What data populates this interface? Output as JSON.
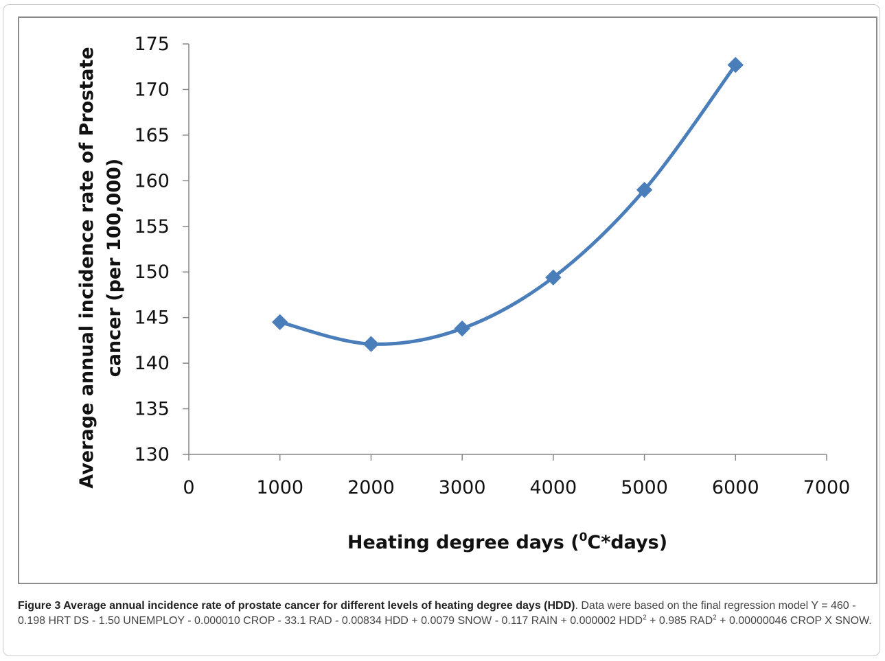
{
  "chart_data": {
    "type": "line",
    "title": "",
    "xlabel_prefix": "Heating degree days (",
    "xlabel_sup": "0",
    "xlabel_suffix": "C*days)",
    "ylabel_line1": "Average annual incidence rate of Prostate",
    "ylabel_line2": "cancer (per 100,000)",
    "xlim": [
      0,
      7000
    ],
    "ylim": [
      130,
      175
    ],
    "x_ticks": [
      "0",
      "1000",
      "2000",
      "3000",
      "4000",
      "5000",
      "6000",
      "7000"
    ],
    "y_ticks": [
      "130",
      "135",
      "140",
      "145",
      "150",
      "155",
      "160",
      "165",
      "170",
      "175"
    ],
    "x_tick_values": [
      0,
      1000,
      2000,
      3000,
      4000,
      5000,
      6000,
      7000
    ],
    "y_tick_values": [
      130,
      135,
      140,
      145,
      150,
      155,
      160,
      165,
      170,
      175
    ],
    "grid": false,
    "legend": "none",
    "marker": "diamond",
    "series_color": "#4a7ebb",
    "x": [
      1000,
      2000,
      3000,
      4000,
      5000,
      6000
    ],
    "series": [
      {
        "values": [
          144.5,
          142.1,
          143.8,
          149.4,
          159.0,
          172.7
        ]
      }
    ]
  },
  "caption": {
    "bold": "Figure 3 Average annual incidence rate of prostate cancer for different levels of heating degree days (HDD)",
    "part1": ". Data were based on the final regression model Y = 460 - 0.198 HRT DS - 1.50 UNEMPLOY - 0.000010 CROP - 33.1 RAD - 0.00834 HDD + 0.0079 SNOW - 0.117 RAIN + 0.000002 HDD",
    "sup1": "2",
    "part2": " + 0.985 RAD",
    "sup2": "2",
    "part3": " + 0.00000046 CROP X SNOW."
  }
}
